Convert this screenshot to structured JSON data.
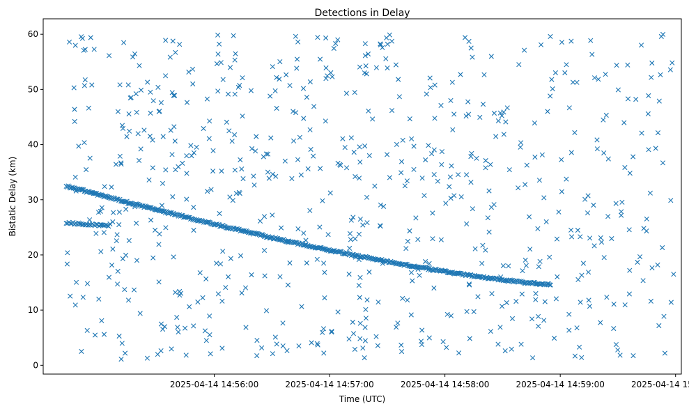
{
  "chart_data": {
    "type": "scatter",
    "title": "Detections in Delay",
    "xlabel": "Time (UTC)",
    "ylabel": "Bistatic Delay (km)",
    "x_unit": "seconds since 2025-04-14 14:55:00 UTC",
    "xlim": [
      -29,
      303
    ],
    "ylim": [
      -1.6,
      62.8
    ],
    "x_ticks": [
      {
        "value": 60,
        "label": "2025-04-14 14:56:00"
      },
      {
        "value": 120,
        "label": "2025-04-14 14:57:00"
      },
      {
        "value": 180,
        "label": "2025-04-14 14:58:00"
      },
      {
        "value": 240,
        "label": "2025-04-14 14:59:00"
      },
      {
        "value": 300,
        "label": "2025-04-14 15:00:00"
      }
    ],
    "y_ticks": [
      0,
      10,
      20,
      30,
      40,
      50,
      60
    ],
    "marker": "x",
    "color": "#1f77b4",
    "grid": false,
    "series": [
      {
        "name": "main track",
        "x_range": [
          -17,
          235
        ],
        "y_range": [
          32.5,
          14.7
        ],
        "approx_points": 480
      },
      {
        "name": "secondary track",
        "x_range": [
          -17,
          5
        ],
        "y_range": [
          25.8,
          25.3
        ],
        "approx_points": 32
      },
      {
        "name": "random clutter",
        "x_range": [
          -17,
          299
        ],
        "y_range": [
          1,
          60
        ],
        "approx_points": 700
      }
    ]
  }
}
